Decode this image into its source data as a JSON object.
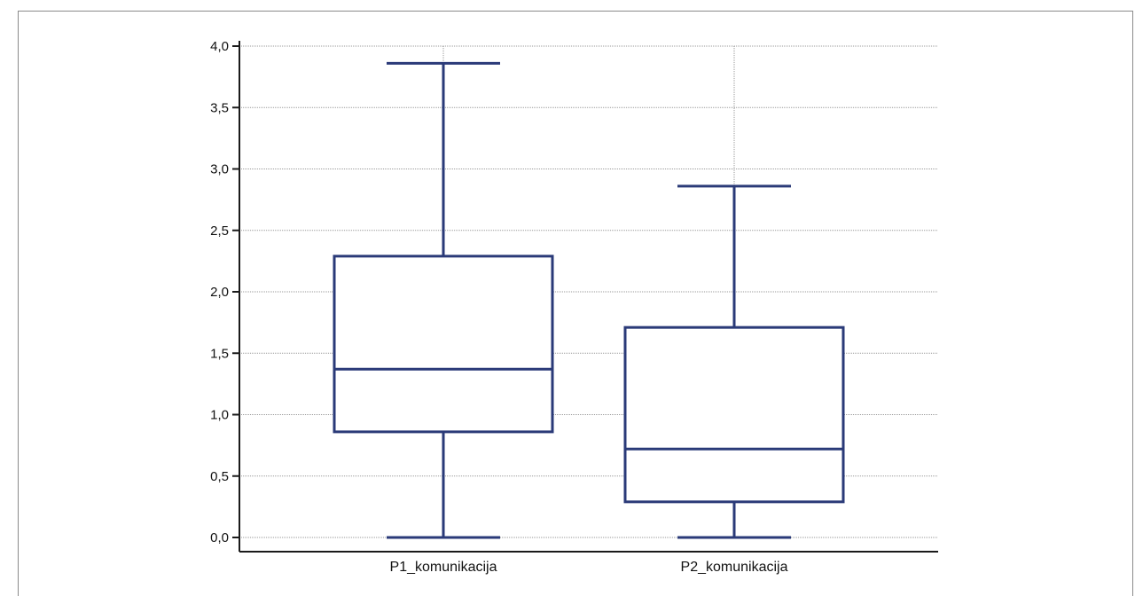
{
  "chart_data": {
    "type": "boxplot",
    "title": "",
    "xlabel": "",
    "ylabel": "",
    "ylim": [
      0,
      4
    ],
    "yticks": [
      0,
      0.5,
      1,
      1.5,
      2,
      2.5,
      3,
      3.5,
      4
    ],
    "ytick_labels": [
      "0,0",
      "0,5",
      "1,0",
      "1,5",
      "2,0",
      "2,5",
      "3,0",
      "3,5",
      "4,0"
    ],
    "grid": true,
    "categories": [
      "P1_komunikacija",
      "P2_komunikacija"
    ],
    "boxes": [
      {
        "category": "P1_komunikacija",
        "min": 0.0,
        "q1": 0.86,
        "median": 1.37,
        "q3": 2.29,
        "max": 3.86
      },
      {
        "category": "P2_komunikacija",
        "min": 0.0,
        "q1": 0.29,
        "median": 0.72,
        "q3": 1.71,
        "max": 2.86
      }
    ],
    "colors": {
      "box": "#2a3a78",
      "axis": "#1a1a1a",
      "grid": "#9a9a9a"
    }
  }
}
